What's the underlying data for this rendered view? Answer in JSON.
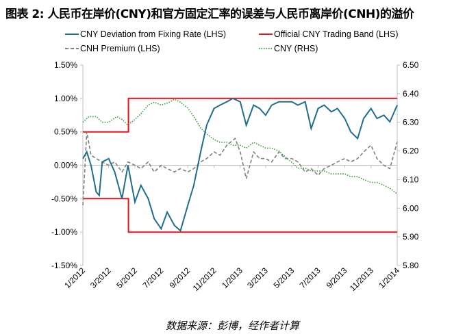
{
  "title": "图表 2: 人民币在岸价(CNY)和官方固定汇率的误差与人民币离岸价(CNH)的溢价",
  "source": "数据来源：彭博，经作者计算",
  "chart_data": {
    "type": "line",
    "x_ticks": [
      "1/2012",
      "3/2012",
      "5/2012",
      "7/2012",
      "9/2012",
      "11/2012",
      "1/2013",
      "3/2013",
      "5/2013",
      "7/2013",
      "9/2013",
      "11/2013",
      "1/2014"
    ],
    "x_tick_dates": [
      "2012-01-01",
      "2012-03-01",
      "2012-05-01",
      "2012-07-01",
      "2012-09-01",
      "2012-11-01",
      "2013-01-01",
      "2013-03-01",
      "2013-05-01",
      "2013-07-01",
      "2013-09-01",
      "2013-11-01",
      "2014-01-01"
    ],
    "xlim": [
      "2012-01-01",
      "2014-01-01"
    ],
    "y_left": {
      "ylim": [
        -1.5,
        1.5
      ],
      "ticks": [
        "1.50%",
        "1.00%",
        "0.50%",
        "0.00%",
        "-0.50%",
        "-1.00%",
        "-1.50%"
      ]
    },
    "y_right": {
      "ylim": [
        5.8,
        6.5
      ],
      "ticks": [
        "6.50",
        "6.40",
        "6.30",
        "6.20",
        "6.10",
        "6.00",
        "5.90",
        "5.80"
      ]
    },
    "grid": false,
    "legend": "top",
    "series": [
      {
        "name": "CNY Deviation from Fixing Rate (LHS)",
        "axis": "left",
        "color": "#1f6e8c",
        "style": "solid",
        "points": [
          [
            "2012-01-01",
            0.1
          ],
          [
            "2012-01-10",
            0.2
          ],
          [
            "2012-01-20",
            0.0
          ],
          [
            "2012-02-01",
            -0.4
          ],
          [
            "2012-02-08",
            -0.45
          ],
          [
            "2012-02-15",
            0.05
          ],
          [
            "2012-03-01",
            0.1
          ],
          [
            "2012-03-15",
            -0.1
          ],
          [
            "2012-04-01",
            -0.5
          ],
          [
            "2012-04-15",
            0.0
          ],
          [
            "2012-05-01",
            -0.55
          ],
          [
            "2012-05-15",
            -0.3
          ],
          [
            "2012-06-01",
            -0.5
          ],
          [
            "2012-06-15",
            -0.8
          ],
          [
            "2012-07-01",
            -0.95
          ],
          [
            "2012-07-15",
            -0.7
          ],
          [
            "2012-08-01",
            -0.9
          ],
          [
            "2012-08-15",
            -0.98
          ],
          [
            "2012-09-01",
            -0.6
          ],
          [
            "2012-09-15",
            -0.3
          ],
          [
            "2012-10-01",
            0.2
          ],
          [
            "2012-10-15",
            0.6
          ],
          [
            "2012-11-01",
            0.85
          ],
          [
            "2012-11-15",
            0.9
          ],
          [
            "2012-12-01",
            0.95
          ],
          [
            "2012-12-15",
            1.0
          ],
          [
            "2013-01-01",
            0.95
          ],
          [
            "2013-01-15",
            0.6
          ],
          [
            "2013-02-01",
            0.9
          ],
          [
            "2013-02-15",
            0.85
          ],
          [
            "2013-03-01",
            0.75
          ],
          [
            "2013-03-15",
            0.9
          ],
          [
            "2013-04-01",
            0.95
          ],
          [
            "2013-04-15",
            0.95
          ],
          [
            "2013-05-01",
            0.95
          ],
          [
            "2013-05-15",
            0.9
          ],
          [
            "2013-06-01",
            0.95
          ],
          [
            "2013-06-15",
            0.55
          ],
          [
            "2013-07-01",
            0.85
          ],
          [
            "2013-07-15",
            0.9
          ],
          [
            "2013-08-01",
            0.8
          ],
          [
            "2013-08-15",
            0.85
          ],
          [
            "2013-09-01",
            0.7
          ],
          [
            "2013-09-15",
            0.5
          ],
          [
            "2013-10-01",
            0.4
          ],
          [
            "2013-10-15",
            0.7
          ],
          [
            "2013-11-01",
            0.85
          ],
          [
            "2013-11-15",
            0.7
          ],
          [
            "2013-12-01",
            0.75
          ],
          [
            "2013-12-15",
            0.65
          ],
          [
            "2014-01-01",
            0.9
          ]
        ]
      },
      {
        "name": "Official CNY Trading Band (LHS)",
        "axis": "left",
        "color": "#e8141b",
        "style": "solid",
        "upper": [
          [
            "2012-01-01",
            0.5
          ],
          [
            "2012-04-16",
            0.5
          ],
          [
            "2012-04-16",
            1.0
          ],
          [
            "2014-01-01",
            1.0
          ]
        ],
        "lower": [
          [
            "2012-01-01",
            -0.5
          ],
          [
            "2012-04-16",
            -0.5
          ],
          [
            "2012-04-16",
            -1.0
          ],
          [
            "2014-01-01",
            -1.0
          ]
        ]
      },
      {
        "name": "CNH Premium (LHS)",
        "axis": "left",
        "color": "#7f7f7f",
        "style": "dashed",
        "points": [
          [
            "2012-01-01",
            -0.6
          ],
          [
            "2012-01-10",
            0.5
          ],
          [
            "2012-01-20",
            0.15
          ],
          [
            "2012-02-01",
            0.1
          ],
          [
            "2012-02-15",
            0.05
          ],
          [
            "2012-03-01",
            0.0
          ],
          [
            "2012-03-15",
            0.05
          ],
          [
            "2012-04-01",
            -0.1
          ],
          [
            "2012-04-15",
            0.05
          ],
          [
            "2012-05-01",
            0.0
          ],
          [
            "2012-05-15",
            -0.05
          ],
          [
            "2012-06-01",
            0.05
          ],
          [
            "2012-06-15",
            -0.1
          ],
          [
            "2012-07-01",
            0.0
          ],
          [
            "2012-07-15",
            -0.05
          ],
          [
            "2012-08-01",
            -0.1
          ],
          [
            "2012-08-15",
            -0.05
          ],
          [
            "2012-09-01",
            -0.1
          ],
          [
            "2012-09-15",
            -0.05
          ],
          [
            "2012-10-01",
            0.05
          ],
          [
            "2012-10-15",
            0.1
          ],
          [
            "2012-11-01",
            0.2
          ],
          [
            "2012-11-15",
            0.15
          ],
          [
            "2012-12-01",
            0.3
          ],
          [
            "2012-12-20",
            0.4
          ],
          [
            "2013-01-01",
            0.2
          ],
          [
            "2013-01-15",
            -0.2
          ],
          [
            "2013-02-01",
            0.2
          ],
          [
            "2013-02-15",
            0.1
          ],
          [
            "2013-03-01",
            0.1
          ],
          [
            "2013-03-15",
            0.05
          ],
          [
            "2013-04-01",
            0.2
          ],
          [
            "2013-04-15",
            0.1
          ],
          [
            "2013-05-01",
            0.1
          ],
          [
            "2013-05-15",
            0.05
          ],
          [
            "2013-06-01",
            -0.1
          ],
          [
            "2013-06-15",
            -0.05
          ],
          [
            "2013-07-01",
            -0.15
          ],
          [
            "2013-07-15",
            -0.05
          ],
          [
            "2013-08-01",
            0.0
          ],
          [
            "2013-08-15",
            0.05
          ],
          [
            "2013-09-01",
            0.1
          ],
          [
            "2013-09-15",
            0.05
          ],
          [
            "2013-10-01",
            0.1
          ],
          [
            "2013-10-15",
            0.2
          ],
          [
            "2013-11-01",
            0.3
          ],
          [
            "2013-11-15",
            0.1
          ],
          [
            "2013-12-01",
            0.0
          ],
          [
            "2013-12-15",
            -0.05
          ],
          [
            "2014-01-01",
            0.35
          ]
        ]
      },
      {
        "name": "CNY (RHS)",
        "axis": "right",
        "color": "#2ca02c",
        "style": "dotted",
        "points": [
          [
            "2012-01-01",
            6.3
          ],
          [
            "2012-01-15",
            6.32
          ],
          [
            "2012-02-01",
            6.32
          ],
          [
            "2012-02-15",
            6.3
          ],
          [
            "2012-03-01",
            6.3
          ],
          [
            "2012-03-20",
            6.32
          ],
          [
            "2012-04-01",
            6.31
          ],
          [
            "2012-04-15",
            6.29
          ],
          [
            "2012-05-01",
            6.31
          ],
          [
            "2012-05-15",
            6.33
          ],
          [
            "2012-06-01",
            6.36
          ],
          [
            "2012-06-15",
            6.37
          ],
          [
            "2012-07-01",
            6.36
          ],
          [
            "2012-07-20",
            6.37
          ],
          [
            "2012-08-01",
            6.38
          ],
          [
            "2012-08-15",
            6.37
          ],
          [
            "2012-09-01",
            6.35
          ],
          [
            "2012-09-15",
            6.32
          ],
          [
            "2012-10-01",
            6.28
          ],
          [
            "2012-10-15",
            6.26
          ],
          [
            "2012-11-01",
            6.24
          ],
          [
            "2012-11-15",
            6.23
          ],
          [
            "2012-12-01",
            6.23
          ],
          [
            "2012-12-15",
            6.22
          ],
          [
            "2013-01-01",
            6.22
          ],
          [
            "2013-01-15",
            6.21
          ],
          [
            "2013-02-01",
            6.23
          ],
          [
            "2013-02-15",
            6.22
          ],
          [
            "2013-03-01",
            6.21
          ],
          [
            "2013-03-15",
            6.21
          ],
          [
            "2013-04-01",
            6.2
          ],
          [
            "2013-04-15",
            6.18
          ],
          [
            "2013-05-01",
            6.16
          ],
          [
            "2013-05-15",
            6.14
          ],
          [
            "2013-06-01",
            6.14
          ],
          [
            "2013-06-15",
            6.13
          ],
          [
            "2013-07-01",
            6.13
          ],
          [
            "2013-07-15",
            6.13
          ],
          [
            "2013-08-01",
            6.12
          ],
          [
            "2013-08-15",
            6.12
          ],
          [
            "2013-09-01",
            6.12
          ],
          [
            "2013-09-15",
            6.11
          ],
          [
            "2013-10-01",
            6.11
          ],
          [
            "2013-10-15",
            6.1
          ],
          [
            "2013-11-01",
            6.09
          ],
          [
            "2013-11-15",
            6.09
          ],
          [
            "2013-12-01",
            6.08
          ],
          [
            "2013-12-15",
            6.07
          ],
          [
            "2014-01-01",
            6.05
          ]
        ]
      }
    ]
  }
}
